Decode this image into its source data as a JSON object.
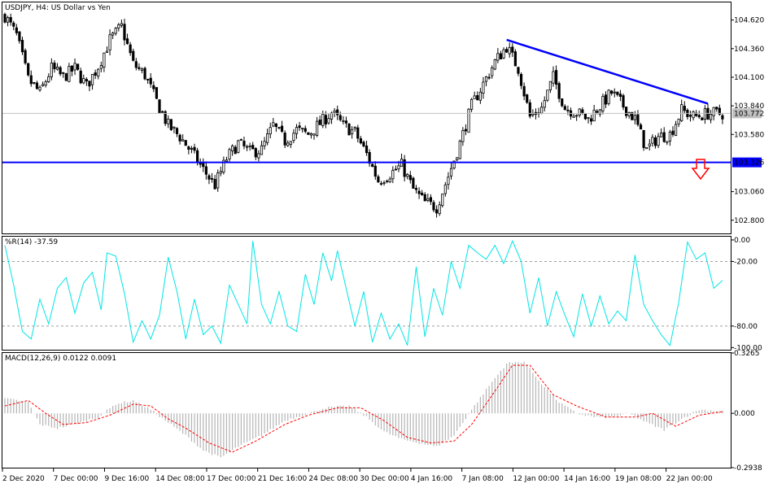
{
  "window": {
    "symbol": "USDJPY",
    "timeframe": "H4",
    "description": "US Dollar vs Yen",
    "title": "USDJPY, H4:  US Dollar vs Yen"
  },
  "colors": {
    "background": "#ffffff",
    "candle": "#000000",
    "trendline": "#0000ff",
    "support_line": "#0000ff",
    "current_price_line": "#c0c0c0",
    "current_price_tag": "#c0c0c0",
    "support_tag": "#0000ff",
    "arrow": "#ff0000",
    "williams_r": "#00e5e5",
    "macd_hist": "#b4b4b4",
    "macd_signal": "#ff0000",
    "level_dash": "#a0a0a0"
  },
  "icons": {
    "signal_arrow": "down-arrow-icon"
  },
  "chart_data": [
    {
      "type": "candlestick",
      "title": "USDJPY, H4:  US Dollar vs Yen",
      "y_ticks": [
        "104.620",
        "104.360",
        "104.100",
        "103.840",
        "103.580",
        "103.060",
        "102.800"
      ],
      "ylim": [
        102.68,
        104.78
      ],
      "x_ticks": [
        "2 Dec 2020",
        "7 Dec 00:00",
        "9 Dec 16:00",
        "14 Dec 08:00",
        "17 Dec 00:00",
        "21 Dec 16:00",
        "24 Dec 08:00",
        "30 Dec 00:00",
        "4 Jan 16:00",
        "7 Jan 08:00",
        "12 Jan 00:00",
        "14 Jan 16:00",
        "19 Jan 08:00",
        "22 Jan 00:00"
      ],
      "current_price": 103.772,
      "current_price_label": "103.772",
      "support_level": 103.326,
      "support_label": "103.326",
      "trendline": {
        "start": {
          "bar": 172,
          "price": 104.44
        },
        "end": {
          "bar": 241,
          "price": 103.86
        }
      },
      "anchors": [
        [
          0,
          104.66
        ],
        [
          4,
          104.48
        ],
        [
          8,
          104.08
        ],
        [
          12,
          103.96
        ],
        [
          16,
          104.18
        ],
        [
          20,
          104.1
        ],
        [
          24,
          104.18
        ],
        [
          28,
          104.02
        ],
        [
          32,
          104.2
        ],
        [
          36,
          104.44
        ],
        [
          40,
          104.56
        ],
        [
          44,
          104.22
        ],
        [
          48,
          104.12
        ],
        [
          52,
          103.88
        ],
        [
          56,
          103.66
        ],
        [
          60,
          103.56
        ],
        [
          64,
          103.42
        ],
        [
          68,
          103.26
        ],
        [
          72,
          103.12
        ],
        [
          76,
          103.36
        ],
        [
          80,
          103.5
        ],
        [
          84,
          103.42
        ],
        [
          88,
          103.44
        ],
        [
          92,
          103.66
        ],
        [
          96,
          103.52
        ],
        [
          100,
          103.62
        ],
        [
          104,
          103.58
        ],
        [
          108,
          103.68
        ],
        [
          112,
          103.78
        ],
        [
          116,
          103.66
        ],
        [
          120,
          103.6
        ],
        [
          124,
          103.4
        ],
        [
          128,
          103.16
        ],
        [
          132,
          103.22
        ],
        [
          136,
          103.3
        ],
        [
          140,
          103.08
        ],
        [
          144,
          102.96
        ],
        [
          148,
          102.92
        ],
        [
          152,
          103.2
        ],
        [
          156,
          103.5
        ],
        [
          160,
          103.84
        ],
        [
          164,
          104.04
        ],
        [
          168,
          104.24
        ],
        [
          172,
          104.38
        ],
        [
          176,
          104.18
        ],
        [
          180,
          103.74
        ],
        [
          184,
          103.82
        ],
        [
          188,
          104.1
        ],
        [
          192,
          103.82
        ],
        [
          196,
          103.78
        ],
        [
          200,
          103.72
        ],
        [
          204,
          103.84
        ],
        [
          208,
          103.96
        ],
        [
          212,
          103.84
        ],
        [
          216,
          103.72
        ],
        [
          220,
          103.44
        ],
        [
          224,
          103.56
        ],
        [
          228,
          103.58
        ],
        [
          232,
          103.8
        ],
        [
          236,
          103.74
        ],
        [
          241,
          103.77
        ]
      ]
    },
    {
      "type": "line",
      "title": "%R(14) -37.59",
      "series": [
        {
          "name": "%R(14)",
          "last_value": -37.59
        }
      ],
      "y_ticks": [
        "0.00",
        "-20.00",
        "-80.00",
        "-100.00"
      ],
      "levels": [
        -20,
        -80
      ],
      "ylim": [
        -102,
        3
      ],
      "anchors": [
        [
          0,
          -5
        ],
        [
          3,
          -42
        ],
        [
          6,
          -85
        ],
        [
          9,
          -92
        ],
        [
          12,
          -55
        ],
        [
          15,
          -78
        ],
        [
          18,
          -45
        ],
        [
          21,
          -35
        ],
        [
          24,
          -68
        ],
        [
          27,
          -40
        ],
        [
          30,
          -30
        ],
        [
          33,
          -65
        ],
        [
          35,
          -12
        ],
        [
          38,
          -15
        ],
        [
          41,
          -50
        ],
        [
          44,
          -95
        ],
        [
          47,
          -75
        ],
        [
          50,
          -92
        ],
        [
          53,
          -70
        ],
        [
          56,
          -16
        ],
        [
          59,
          -48
        ],
        [
          62,
          -92
        ],
        [
          65,
          -55
        ],
        [
          68,
          -88
        ],
        [
          71,
          -80
        ],
        [
          74,
          -96
        ],
        [
          77,
          -42
        ],
        [
          80,
          -60
        ],
        [
          83,
          -78
        ],
        [
          85,
          -1
        ],
        [
          88,
          -60
        ],
        [
          91,
          -78
        ],
        [
          94,
          -48
        ],
        [
          97,
          -80
        ],
        [
          100,
          -85
        ],
        [
          103,
          -32
        ],
        [
          106,
          -60
        ],
        [
          109,
          -12
        ],
        [
          112,
          -38
        ],
        [
          114,
          -10
        ],
        [
          117,
          -45
        ],
        [
          120,
          -80
        ],
        [
          123,
          -48
        ],
        [
          126,
          -95
        ],
        [
          129,
          -68
        ],
        [
          132,
          -92
        ],
        [
          135,
          -78
        ],
        [
          138,
          -98
        ],
        [
          141,
          -25
        ],
        [
          144,
          -90
        ],
        [
          147,
          -45
        ],
        [
          150,
          -70
        ],
        [
          153,
          -20
        ],
        [
          156,
          -45
        ],
        [
          159,
          -5
        ],
        [
          162,
          -12
        ],
        [
          165,
          -18
        ],
        [
          168,
          -5
        ],
        [
          171,
          -22
        ],
        [
          174,
          -1
        ],
        [
          177,
          -20
        ],
        [
          180,
          -68
        ],
        [
          183,
          -35
        ],
        [
          186,
          -80
        ],
        [
          189,
          -48
        ],
        [
          192,
          -70
        ],
        [
          195,
          -90
        ],
        [
          198,
          -50
        ],
        [
          201,
          -80
        ],
        [
          204,
          -52
        ],
        [
          207,
          -78
        ],
        [
          210,
          -66
        ],
        [
          213,
          -75
        ],
        [
          216,
          -14
        ],
        [
          219,
          -60
        ],
        [
          222,
          -75
        ],
        [
          225,
          -88
        ],
        [
          228,
          -98
        ],
        [
          231,
          -58
        ],
        [
          234,
          -2
        ],
        [
          237,
          -18
        ],
        [
          240,
          -12
        ],
        [
          243,
          -45
        ],
        [
          246,
          -37.59
        ]
      ]
    },
    {
      "type": "bar",
      "title": "MACD(12,26,9) 0.0122 0.0091",
      "series": [
        {
          "name": "MACD histogram",
          "last_value": 0.0122
        },
        {
          "name": "Signal",
          "last_value": 0.0091
        }
      ],
      "y_ticks": [
        "0.3265",
        "0.000",
        "-0.2938"
      ],
      "ylim": [
        -0.2938,
        0.3265
      ],
      "hist_anchors": [
        [
          0,
          0.08
        ],
        [
          8,
          0.06
        ],
        [
          12,
          -0.06
        ],
        [
          18,
          -0.08
        ],
        [
          26,
          -0.05
        ],
        [
          32,
          -0.02
        ],
        [
          38,
          0.05
        ],
        [
          44,
          0.07
        ],
        [
          50,
          0.02
        ],
        [
          56,
          -0.05
        ],
        [
          62,
          -0.12
        ],
        [
          68,
          -0.2
        ],
        [
          74,
          -0.24
        ],
        [
          80,
          -0.18
        ],
        [
          88,
          -0.12
        ],
        [
          96,
          -0.04
        ],
        [
          104,
          0.0
        ],
        [
          110,
          0.03
        ],
        [
          118,
          0.04
        ],
        [
          124,
          -0.02
        ],
        [
          130,
          -0.1
        ],
        [
          136,
          -0.14
        ],
        [
          142,
          -0.16
        ],
        [
          148,
          -0.18
        ],
        [
          154,
          -0.12
        ],
        [
          160,
          0.02
        ],
        [
          166,
          0.15
        ],
        [
          172,
          0.27
        ],
        [
          178,
          0.28
        ],
        [
          184,
          0.16
        ],
        [
          190,
          0.06
        ],
        [
          196,
          0.0
        ],
        [
          202,
          -0.02
        ],
        [
          208,
          -0.02
        ],
        [
          214,
          0.0
        ],
        [
          220,
          -0.05
        ],
        [
          226,
          -0.09
        ],
        [
          232,
          -0.03
        ],
        [
          238,
          0.02
        ],
        [
          246,
          0.0122
        ]
      ],
      "signal_anchors": [
        [
          0,
          0.04
        ],
        [
          8,
          0.07
        ],
        [
          14,
          0.0
        ],
        [
          20,
          -0.06
        ],
        [
          28,
          -0.05
        ],
        [
          36,
          -0.01
        ],
        [
          44,
          0.05
        ],
        [
          50,
          0.04
        ],
        [
          56,
          -0.03
        ],
        [
          62,
          -0.08
        ],
        [
          70,
          -0.16
        ],
        [
          78,
          -0.21
        ],
        [
          86,
          -0.15
        ],
        [
          96,
          -0.06
        ],
        [
          104,
          -0.01
        ],
        [
          114,
          0.03
        ],
        [
          122,
          0.03
        ],
        [
          130,
          -0.04
        ],
        [
          138,
          -0.13
        ],
        [
          146,
          -0.16
        ],
        [
          154,
          -0.15
        ],
        [
          160,
          -0.06
        ],
        [
          168,
          0.12
        ],
        [
          174,
          0.26
        ],
        [
          180,
          0.26
        ],
        [
          188,
          0.1
        ],
        [
          196,
          0.04
        ],
        [
          206,
          -0.02
        ],
        [
          216,
          -0.02
        ],
        [
          222,
          0.0
        ],
        [
          230,
          -0.07
        ],
        [
          238,
          -0.01
        ],
        [
          246,
          0.0091
        ]
      ]
    }
  ]
}
